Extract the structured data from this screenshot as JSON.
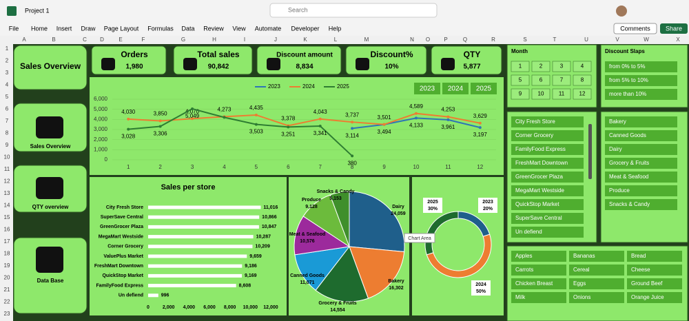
{
  "app": {
    "title": "Project 1",
    "search": "Search",
    "buttons": [
      "Comments",
      "Share"
    ]
  },
  "menu": [
    "File",
    "Home",
    "Insert",
    "Draw",
    "Page Layout",
    "Formulas",
    "Data",
    "Review",
    "View",
    "Automate",
    "Developer",
    "Help"
  ],
  "sheet": {
    "columns": [
      "A",
      "B",
      "C",
      "D",
      "E",
      "F",
      "G",
      "H",
      "I",
      "J",
      "K",
      "L",
      "M",
      "N",
      "O",
      "P",
      "Q",
      "R",
      "S",
      "T",
      "U",
      "V",
      "W",
      "X"
    ],
    "rows": [
      1,
      2,
      3,
      4,
      5,
      6,
      7,
      8,
      9,
      10,
      11,
      12,
      13,
      14,
      15,
      16,
      17,
      18,
      19,
      20,
      21,
      22,
      23
    ]
  },
  "nav": [
    "Sales Overview",
    "Sales Overview",
    "QTY overview",
    "Data Base"
  ],
  "kpis": [
    {
      "label": "Orders",
      "value": "1,980"
    },
    {
      "label": "Total sales",
      "value": "90,842"
    },
    {
      "label": "Discount amount",
      "value": "8,834"
    },
    {
      "label": "Discount%",
      "value": "10%"
    },
    {
      "label": "QTY",
      "value": "5,877"
    }
  ],
  "chart_data": [
    {
      "type": "line",
      "x": [
        1,
        2,
        3,
        4,
        5,
        6,
        7,
        8,
        9,
        10,
        11,
        12
      ],
      "xlim": [
        0.5,
        12.5
      ],
      "xticks": [
        1,
        2,
        3,
        4,
        5,
        6,
        7,
        8,
        9,
        10,
        11,
        12
      ],
      "ylim": [
        0,
        6000
      ],
      "yticks": [
        0,
        {
          "value": 1000,
          "label": "1,000"
        },
        {
          "value": 2000,
          "label": "2,000"
        },
        {
          "value": 3000,
          "label": "3,000"
        },
        {
          "value": 4000,
          "label": "4,000"
        },
        {
          "value": 5000,
          "label": "5,000"
        },
        {
          "value": 6000,
          "label": "6,000"
        }
      ],
      "legend": "top",
      "series": [
        {
          "name": "2023",
          "color": "#2e75b6",
          "values": [
            null,
            null,
            null,
            null,
            null,
            null,
            null,
            3114,
            3494,
            4133,
            3961,
            3197
          ],
          "value_labels": [
            null,
            null,
            null,
            null,
            null,
            null,
            null,
            "3,114",
            "3,494",
            "4,133",
            "3,961",
            "3,197"
          ]
        },
        {
          "name": "2024",
          "color": "#ed7d31",
          "values": [
            4030,
            3850,
            4070,
            4273,
            4435,
            3378,
            4043,
            3737,
            3501,
            4589,
            4253,
            3629
          ],
          "value_labels": [
            "4,030",
            "3,850",
            "4,070",
            "4,273",
            "4,435",
            "3,378",
            "4,043",
            "3,737",
            "3,501",
            "4,589",
            "4,253",
            "3,629"
          ]
        },
        {
          "name": "2025",
          "color": "#2e7d32",
          "values": [
            3028,
            3306,
            5049,
            4200,
            3503,
            3251,
            3341,
            380,
            null,
            null,
            null,
            null
          ],
          "value_labels": [
            "3,028",
            "3,306",
            "5,049",
            null,
            "3,503",
            "3,251",
            "3,341",
            "380",
            null,
            null,
            null,
            null
          ]
        }
      ]
    },
    {
      "type": "bar",
      "orientation": "horizontal",
      "title": "Sales per store",
      "color": "#ffffff",
      "categories": [
        "City Fresh Store",
        "SuperSave Central",
        "GreenGrocer Plaza",
        "MegaMart Westside",
        "Corner Grocery",
        "ValuePlus Market",
        "FreshMart Downtown",
        "QuickStop Market",
        "FamilyFood Express",
        "Un defiend"
      ],
      "values": [
        11016,
        10866,
        10847,
        10287,
        10209,
        9659,
        9186,
        9169,
        8608,
        996
      ],
      "value_labels": [
        "11,016",
        "10,866",
        "10,847",
        "10,287",
        "10,209",
        "9,659",
        "9,186",
        "9,169",
        "8,608",
        "996"
      ],
      "xlim": [
        0,
        12000
      ],
      "xticks": [
        0,
        {
          "value": 2000,
          "label": "2,000"
        },
        {
          "value": 4000,
          "label": "4,000"
        },
        {
          "value": 6000,
          "label": "6,000"
        },
        {
          "value": 8000,
          "label": "8,000"
        },
        {
          "value": 10000,
          "label": "10,000"
        },
        {
          "value": 12000,
          "label": "12,000"
        }
      ]
    },
    {
      "type": "pie",
      "categories": [
        "Dairy",
        "Bakery",
        "Grocery & Fruits",
        "Canned Goods",
        "Meat & Seafood",
        "Produce",
        "Snacks & Candy"
      ],
      "values": [
        24059,
        16302,
        14554,
        11071,
        10576,
        9128,
        5153
      ],
      "value_labels": [
        "24,059",
        "16,302",
        "14,554",
        "11,071",
        "10,576",
        "9,128",
        "5,153"
      ],
      "colors": [
        "#1f5f8b",
        "#ed7d31",
        "#1e6b2e",
        "#1a9ad6",
        "#9c2a9c",
        "#6cbb3c",
        "#3f8f2b"
      ]
    },
    {
      "type": "donut",
      "categories": [
        "2023",
        "2024",
        "2025"
      ],
      "values": [
        20,
        50,
        30
      ],
      "value_labels": [
        "20%",
        "50%",
        "30%"
      ],
      "colors": [
        "#1f5f8b",
        "#ed7d31",
        "#1e6b2e"
      ],
      "tooltip": "Chart Area"
    }
  ],
  "slicers": {
    "year": [
      "2023",
      "2024",
      "2025"
    ],
    "month": {
      "title": "Month",
      "items": [
        "1",
        "2",
        "3",
        "4",
        "5",
        "6",
        "7",
        "8",
        "9",
        "10",
        "11",
        "12"
      ]
    },
    "discount": {
      "title": "Discount Slaps",
      "items": [
        "from 0% to 5%",
        "from 5% to 10%",
        "more than 10%"
      ]
    },
    "store": [
      "City Fresh Store",
      "Corner Grocery",
      "FamilyFood Express",
      "FreshMart Downtown",
      "GreenGrocer Plaza",
      "MegaMart Westside",
      "QuickStop Market",
      "SuperSave Central",
      "Un defiend"
    ],
    "category": [
      "Bakery",
      "Canned Goods",
      "Dairy",
      "Grocery & Fruits",
      "Meat & Seafood",
      "Produce",
      "Snacks & Candy"
    ],
    "product": [
      "Apples",
      "Bananas",
      "Bread",
      "Carrots",
      "Cereal",
      "Cheese",
      "Chicken Breast",
      "Eggs",
      "Ground Beef",
      "Milk",
      "Onions",
      "Orange Juice"
    ]
  }
}
